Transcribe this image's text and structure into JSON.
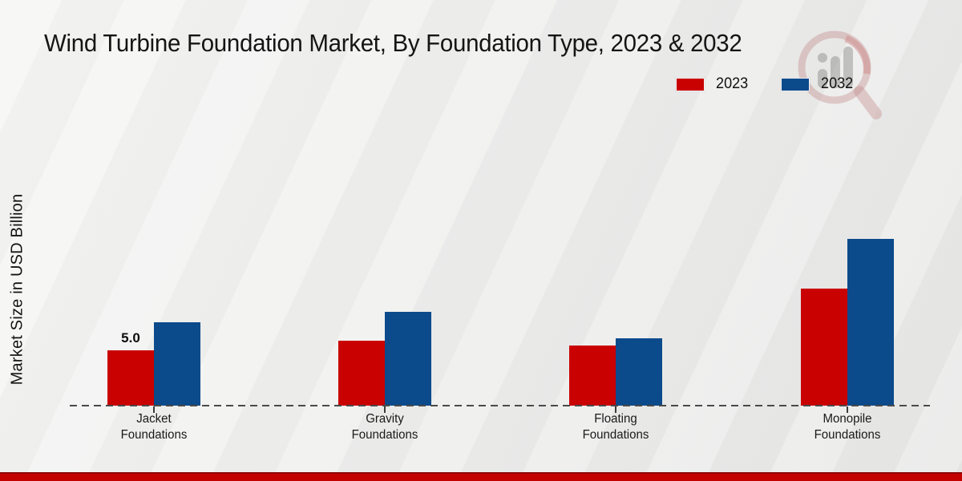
{
  "page": {
    "title": "Wind Turbine Foundation Market, By Foundation Type, 2023 & 2032"
  },
  "watermark": {
    "icon": "magnifier-bar-chart-logo"
  },
  "chart_data": {
    "type": "bar",
    "title": "Wind Turbine Foundation Market, By Foundation Type, 2023 & 2032",
    "xlabel": "",
    "ylabel": "Market Size in USD Billion",
    "categories": [
      "Jacket Foundations",
      "Gravity Foundations",
      "Floating Foundations",
      "Monopile Foundations"
    ],
    "series": [
      {
        "name": "2023",
        "color": "#c90101",
        "values": [
          5.0,
          5.9,
          5.4,
          10.6
        ],
        "labels": [
          "5.0",
          "",
          "",
          ""
        ]
      },
      {
        "name": "2032",
        "color": "#0b4a8b",
        "values": [
          7.5,
          8.5,
          6.1,
          15.1
        ],
        "labels": [
          "",
          "",
          "",
          ""
        ]
      }
    ],
    "ylim": [
      0,
      21
    ],
    "grid": false,
    "legend_position": "top-right",
    "baseline_style": "dashed",
    "accent_colors": {
      "footer_bar": "#c30101",
      "baseline": "#4a4a4a"
    }
  }
}
